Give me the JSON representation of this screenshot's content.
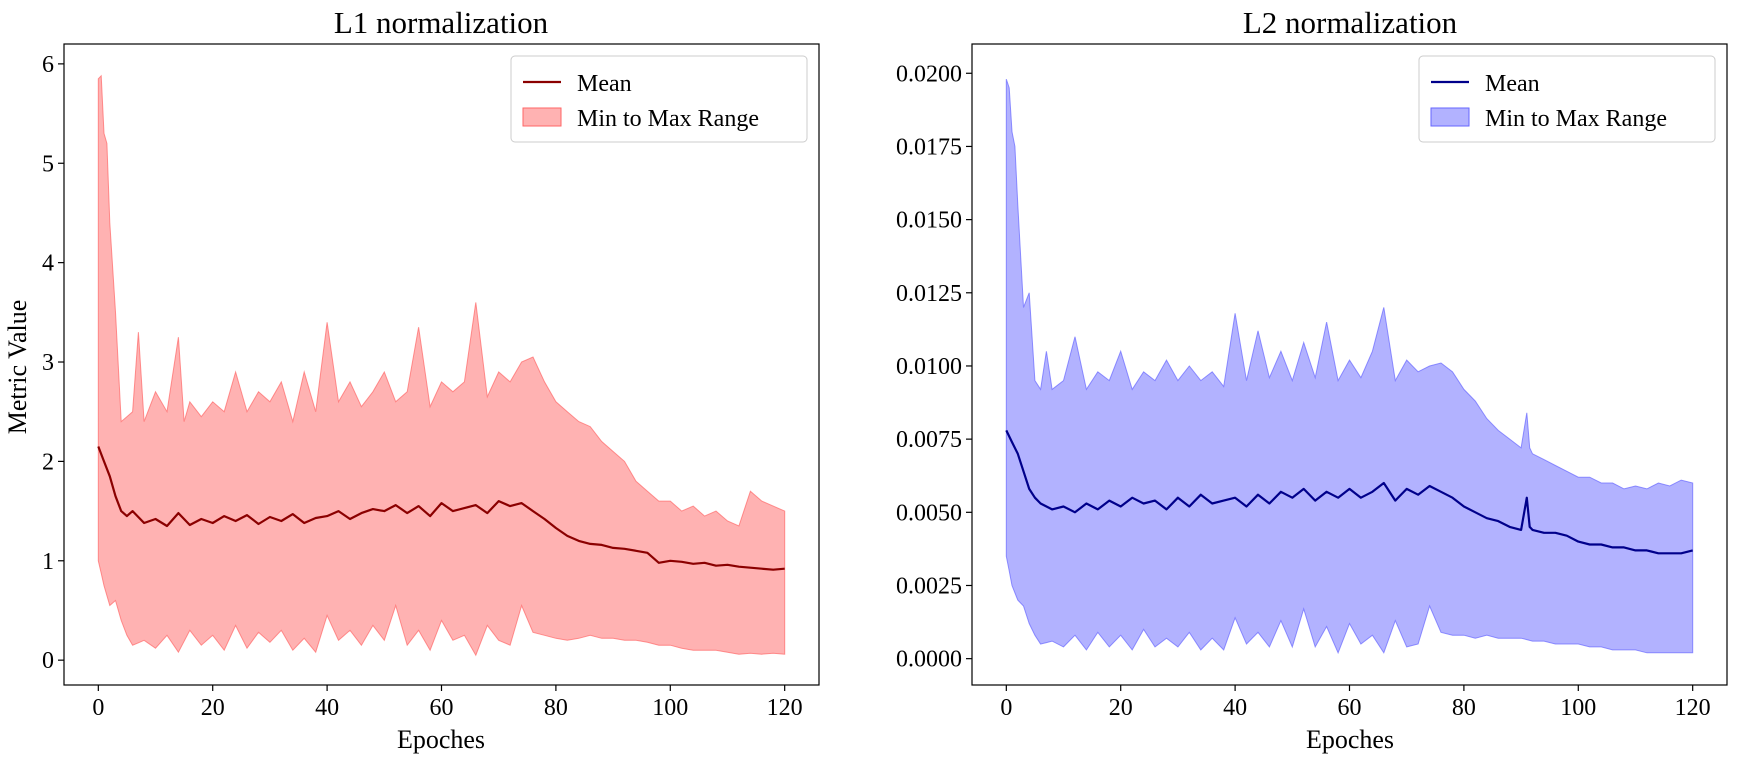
{
  "figure": {
    "charts": [
      {
        "id": "l1",
        "title": "L1 normalization",
        "ylabel": "Metric Value",
        "xlabel": "Epoches"
      },
      {
        "id": "l2",
        "title": "L2 normalization",
        "ylabel": "",
        "xlabel": "Epoches"
      }
    ]
  },
  "chart_data": [
    {
      "type": "line",
      "title": "L1 normalization",
      "xlabel": "Epoches",
      "ylabel": "Metric Value",
      "xlim": [
        -6,
        126
      ],
      "ylim": [
        -0.25,
        6.2
      ],
      "xticks": [
        0,
        20,
        40,
        60,
        80,
        100,
        120
      ],
      "xtick_labels": [
        "0",
        "20",
        "40",
        "60",
        "80",
        "100",
        "120"
      ],
      "yticks": [
        0,
        1,
        2,
        3,
        4,
        5,
        6
      ],
      "ytick_labels": [
        "0",
        "1",
        "2",
        "3",
        "4",
        "5",
        "6"
      ],
      "legend": {
        "position": "top-right",
        "mean_label": "Mean",
        "range_label": "Min to Max Range"
      },
      "colors": {
        "line": "#8b0000",
        "fill": "#ff6666",
        "fill_opacity": 0.5,
        "edge": "#ff6666"
      },
      "series": [
        {
          "name": "Mean",
          "x": [
            0,
            1,
            2,
            3,
            4,
            5,
            6,
            8,
            10,
            12,
            14,
            16,
            18,
            20,
            22,
            24,
            26,
            28,
            30,
            32,
            34,
            36,
            38,
            40,
            42,
            44,
            46,
            48,
            50,
            52,
            54,
            56,
            58,
            60,
            62,
            64,
            66,
            68,
            70,
            72,
            74,
            76,
            78,
            80,
            82,
            84,
            86,
            88,
            90,
            92,
            94,
            96,
            98,
            100,
            102,
            104,
            106,
            108,
            110,
            112,
            114,
            116,
            118,
            120
          ],
          "values": [
            2.15,
            2.0,
            1.85,
            1.65,
            1.5,
            1.45,
            1.5,
            1.38,
            1.42,
            1.35,
            1.48,
            1.36,
            1.42,
            1.38,
            1.45,
            1.4,
            1.46,
            1.37,
            1.44,
            1.4,
            1.47,
            1.38,
            1.43,
            1.45,
            1.5,
            1.42,
            1.48,
            1.52,
            1.5,
            1.56,
            1.48,
            1.55,
            1.45,
            1.58,
            1.5,
            1.53,
            1.56,
            1.48,
            1.6,
            1.55,
            1.58,
            1.5,
            1.42,
            1.33,
            1.25,
            1.2,
            1.17,
            1.16,
            1.13,
            1.12,
            1.1,
            1.08,
            0.98,
            1.0,
            0.99,
            0.97,
            0.98,
            0.95,
            0.96,
            0.94,
            0.93,
            0.92,
            0.91,
            0.92
          ]
        },
        {
          "name": "Max",
          "x": [
            0,
            0.5,
            1,
            1.5,
            2,
            3,
            4,
            5,
            6,
            7,
            8,
            10,
            12,
            14,
            15,
            16,
            18,
            20,
            22,
            24,
            26,
            28,
            30,
            32,
            34,
            36,
            38,
            40,
            42,
            44,
            46,
            48,
            50,
            52,
            54,
            56,
            58,
            60,
            62,
            64,
            66,
            68,
            70,
            72,
            74,
            76,
            78,
            80,
            82,
            84,
            86,
            88,
            90,
            92,
            94,
            96,
            98,
            100,
            102,
            104,
            106,
            108,
            110,
            112,
            114,
            116,
            118,
            120
          ],
          "values": [
            5.85,
            5.88,
            5.3,
            5.2,
            4.4,
            3.5,
            2.4,
            2.45,
            2.5,
            3.3,
            2.4,
            2.7,
            2.5,
            3.25,
            2.4,
            2.6,
            2.45,
            2.6,
            2.5,
            2.9,
            2.5,
            2.7,
            2.6,
            2.8,
            2.4,
            2.9,
            2.5,
            3.4,
            2.6,
            2.8,
            2.55,
            2.7,
            2.9,
            2.6,
            2.7,
            3.35,
            2.55,
            2.8,
            2.7,
            2.8,
            3.6,
            2.65,
            2.9,
            2.8,
            3.0,
            3.05,
            2.8,
            2.6,
            2.5,
            2.4,
            2.35,
            2.2,
            2.1,
            2.0,
            1.8,
            1.7,
            1.6,
            1.6,
            1.5,
            1.55,
            1.45,
            1.5,
            1.4,
            1.35,
            1.7,
            1.6,
            1.55,
            1.5
          ]
        },
        {
          "name": "Min",
          "x": [
            0,
            1,
            2,
            3,
            4,
            5,
            6,
            8,
            10,
            12,
            14,
            16,
            18,
            20,
            22,
            24,
            26,
            28,
            30,
            32,
            34,
            36,
            38,
            40,
            42,
            44,
            46,
            48,
            50,
            52,
            54,
            56,
            58,
            60,
            62,
            64,
            66,
            68,
            70,
            72,
            74,
            76,
            78,
            80,
            82,
            84,
            86,
            88,
            90,
            92,
            94,
            96,
            98,
            100,
            102,
            104,
            106,
            108,
            110,
            112,
            114,
            116,
            118,
            120
          ],
          "values": [
            1.0,
            0.75,
            0.55,
            0.6,
            0.4,
            0.25,
            0.15,
            0.2,
            0.12,
            0.25,
            0.08,
            0.3,
            0.15,
            0.25,
            0.1,
            0.35,
            0.12,
            0.28,
            0.18,
            0.3,
            0.1,
            0.22,
            0.08,
            0.45,
            0.2,
            0.3,
            0.15,
            0.35,
            0.2,
            0.55,
            0.15,
            0.3,
            0.1,
            0.4,
            0.2,
            0.25,
            0.05,
            0.35,
            0.2,
            0.15,
            0.55,
            0.28,
            0.25,
            0.22,
            0.2,
            0.22,
            0.25,
            0.22,
            0.22,
            0.2,
            0.2,
            0.18,
            0.15,
            0.15,
            0.12,
            0.1,
            0.1,
            0.1,
            0.08,
            0.06,
            0.07,
            0.06,
            0.07,
            0.06
          ]
        }
      ]
    },
    {
      "type": "line",
      "title": "L2 normalization",
      "xlabel": "Epoches",
      "ylabel": "",
      "xlim": [
        -6,
        126
      ],
      "ylim": [
        -0.0009,
        0.021
      ],
      "xticks": [
        0,
        20,
        40,
        60,
        80,
        100,
        120
      ],
      "xtick_labels": [
        "0",
        "20",
        "40",
        "60",
        "80",
        "100",
        "120"
      ],
      "yticks": [
        0.0,
        0.0025,
        0.005,
        0.0075,
        0.01,
        0.0125,
        0.015,
        0.0175,
        0.02
      ],
      "ytick_labels": [
        "0.0000",
        "0.0025",
        "0.0050",
        "0.0075",
        "0.0100",
        "0.0125",
        "0.0150",
        "0.0175",
        "0.0200"
      ],
      "legend": {
        "position": "top-right",
        "mean_label": "Mean",
        "range_label": "Min to Max Range"
      },
      "colors": {
        "line": "#00008b",
        "fill": "#6666ff",
        "fill_opacity": 0.5,
        "edge": "#6666ff"
      },
      "series": [
        {
          "name": "Mean",
          "x": [
            0,
            1,
            2,
            3,
            4,
            5,
            6,
            8,
            10,
            12,
            14,
            16,
            18,
            20,
            22,
            24,
            26,
            28,
            30,
            32,
            34,
            36,
            38,
            40,
            42,
            44,
            46,
            48,
            50,
            52,
            54,
            56,
            58,
            60,
            62,
            64,
            66,
            68,
            70,
            72,
            74,
            76,
            78,
            80,
            82,
            84,
            86,
            88,
            90,
            91,
            91.5,
            92,
            94,
            96,
            98,
            100,
            102,
            104,
            106,
            108,
            110,
            112,
            114,
            116,
            118,
            120
          ],
          "values": [
            0.0078,
            0.0074,
            0.007,
            0.0064,
            0.0058,
            0.0055,
            0.0053,
            0.0051,
            0.0052,
            0.005,
            0.0053,
            0.0051,
            0.0054,
            0.0052,
            0.0055,
            0.0053,
            0.0054,
            0.0051,
            0.0055,
            0.0052,
            0.0056,
            0.0053,
            0.0054,
            0.0055,
            0.0052,
            0.0056,
            0.0053,
            0.0057,
            0.0055,
            0.0058,
            0.0054,
            0.0057,
            0.0055,
            0.0058,
            0.0055,
            0.0057,
            0.006,
            0.0054,
            0.0058,
            0.0056,
            0.0059,
            0.0057,
            0.0055,
            0.0052,
            0.005,
            0.0048,
            0.0047,
            0.0045,
            0.0044,
            0.0055,
            0.0045,
            0.0044,
            0.0043,
            0.0043,
            0.0042,
            0.004,
            0.0039,
            0.0039,
            0.0038,
            0.0038,
            0.0037,
            0.0037,
            0.0036,
            0.0036,
            0.0036,
            0.0037
          ]
        },
        {
          "name": "Max",
          "x": [
            0,
            0.5,
            1,
            1.5,
            2,
            3,
            4,
            5,
            6,
            7,
            8,
            10,
            12,
            14,
            15,
            16,
            18,
            20,
            22,
            24,
            26,
            28,
            30,
            32,
            34,
            36,
            38,
            40,
            42,
            44,
            46,
            48,
            50,
            52,
            54,
            56,
            58,
            60,
            62,
            64,
            66,
            68,
            70,
            72,
            74,
            76,
            78,
            80,
            82,
            84,
            86,
            88,
            90,
            91,
            91.5,
            92,
            94,
            96,
            98,
            100,
            102,
            104,
            106,
            108,
            110,
            112,
            114,
            116,
            118,
            120
          ],
          "values": [
            0.0198,
            0.0195,
            0.018,
            0.0175,
            0.0155,
            0.012,
            0.0125,
            0.0095,
            0.0092,
            0.0105,
            0.0092,
            0.0095,
            0.011,
            0.0092,
            0.0095,
            0.0098,
            0.0095,
            0.0105,
            0.0092,
            0.0098,
            0.0095,
            0.0102,
            0.0095,
            0.01,
            0.0095,
            0.0098,
            0.0093,
            0.0118,
            0.0095,
            0.0112,
            0.0096,
            0.0105,
            0.0095,
            0.0108,
            0.0096,
            0.0115,
            0.0095,
            0.0102,
            0.0096,
            0.0105,
            0.012,
            0.0095,
            0.0102,
            0.0098,
            0.01,
            0.0101,
            0.0098,
            0.0092,
            0.0088,
            0.0082,
            0.0078,
            0.0075,
            0.0072,
            0.0084,
            0.0072,
            0.007,
            0.0068,
            0.0066,
            0.0064,
            0.0062,
            0.0062,
            0.006,
            0.006,
            0.0058,
            0.0059,
            0.0058,
            0.006,
            0.0059,
            0.0061,
            0.006
          ]
        },
        {
          "name": "Min",
          "x": [
            0,
            1,
            2,
            3,
            4,
            5,
            6,
            8,
            10,
            12,
            14,
            16,
            18,
            20,
            22,
            24,
            26,
            28,
            30,
            32,
            34,
            36,
            38,
            40,
            42,
            44,
            46,
            48,
            50,
            52,
            54,
            56,
            58,
            60,
            62,
            64,
            66,
            68,
            70,
            72,
            74,
            76,
            78,
            80,
            82,
            84,
            86,
            88,
            90,
            92,
            94,
            96,
            98,
            100,
            102,
            104,
            106,
            108,
            110,
            112,
            114,
            116,
            118,
            120
          ],
          "values": [
            0.0035,
            0.0025,
            0.002,
            0.0018,
            0.0012,
            0.0008,
            0.0005,
            0.0006,
            0.0004,
            0.0008,
            0.0003,
            0.0009,
            0.0004,
            0.0008,
            0.0003,
            0.001,
            0.0004,
            0.0007,
            0.0004,
            0.0009,
            0.0003,
            0.0007,
            0.0003,
            0.0014,
            0.0005,
            0.0009,
            0.0004,
            0.0013,
            0.0004,
            0.0017,
            0.0004,
            0.0011,
            0.0002,
            0.0012,
            0.0005,
            0.0008,
            0.0002,
            0.0013,
            0.0004,
            0.0005,
            0.0018,
            0.0009,
            0.0008,
            0.0008,
            0.0007,
            0.0008,
            0.0007,
            0.0007,
            0.0007,
            0.0006,
            0.0006,
            0.0005,
            0.0005,
            0.0005,
            0.0004,
            0.0004,
            0.0003,
            0.0003,
            0.0003,
            0.0002,
            0.0002,
            0.0002,
            0.0002,
            0.0002
          ]
        }
      ]
    }
  ]
}
